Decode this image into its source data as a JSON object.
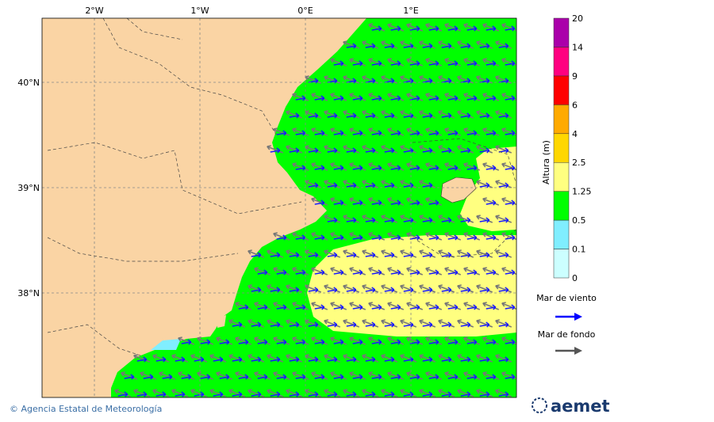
{
  "map": {
    "lon_labels": [
      "2°W",
      "1°W",
      "0°E",
      "1°E"
    ],
    "lat_labels": [
      "40°N",
      "39°N",
      "38°N"
    ]
  },
  "colorbar": {
    "title": "Altura (m)",
    "labels": [
      "0",
      "0.1",
      "0.5",
      "1.25",
      "2.5",
      "4",
      "6",
      "9",
      "14",
      "20"
    ],
    "colors": [
      "#ccffff",
      "#80eeff",
      "#00ff00",
      "#ffff80",
      "#ffd700",
      "#ffaa00",
      "#ff0000",
      "#ff0080",
      "#aa00aa"
    ]
  },
  "legend": {
    "wind_sea": "Mar de viento",
    "swell": "Mar de fondo"
  },
  "footer": {
    "credit": "© Agencia Estatal de Meteorología",
    "logo": "aemet"
  }
}
